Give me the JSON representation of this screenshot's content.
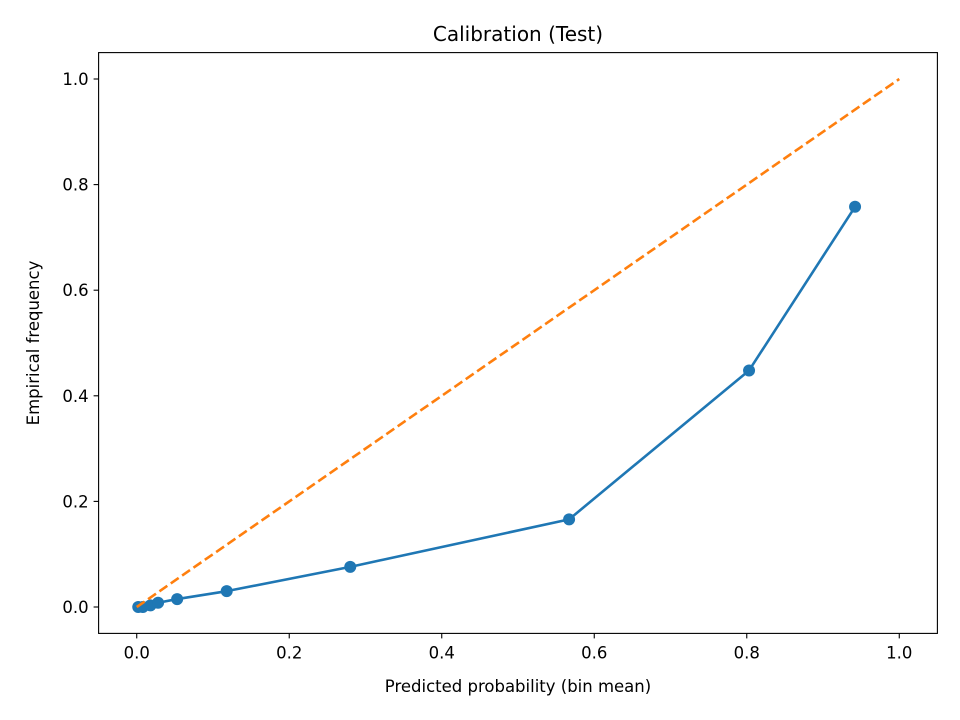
{
  "chart_data": {
    "type": "line",
    "title": "Calibration (Test)",
    "xlabel": "Predicted probability (bin mean)",
    "ylabel": "Empirical frequency",
    "xlim": [
      -0.05,
      1.05
    ],
    "ylim": [
      -0.05,
      1.05
    ],
    "xticks": [
      "0.0",
      "0.2",
      "0.4",
      "0.6",
      "0.8",
      "1.0"
    ],
    "yticks": [
      "0.0",
      "0.2",
      "0.4",
      "0.6",
      "0.8",
      "1.0"
    ],
    "grid": false,
    "series": [
      {
        "style": "solid-line-with-circle-markers",
        "color": "#1f77b4",
        "x": [
          0.002,
          0.008,
          0.018,
          0.028,
          0.053,
          0.118,
          0.28,
          0.567,
          0.803,
          0.942
        ],
        "y": [
          0.0,
          0.0,
          0.003,
          0.008,
          0.015,
          0.03,
          0.076,
          0.166,
          0.448,
          0.758
        ]
      },
      {
        "style": "dashed-line",
        "color": "#ff7f0e",
        "x": [
          0.0,
          1.0
        ],
        "y": [
          0.0,
          1.0
        ]
      }
    ]
  }
}
